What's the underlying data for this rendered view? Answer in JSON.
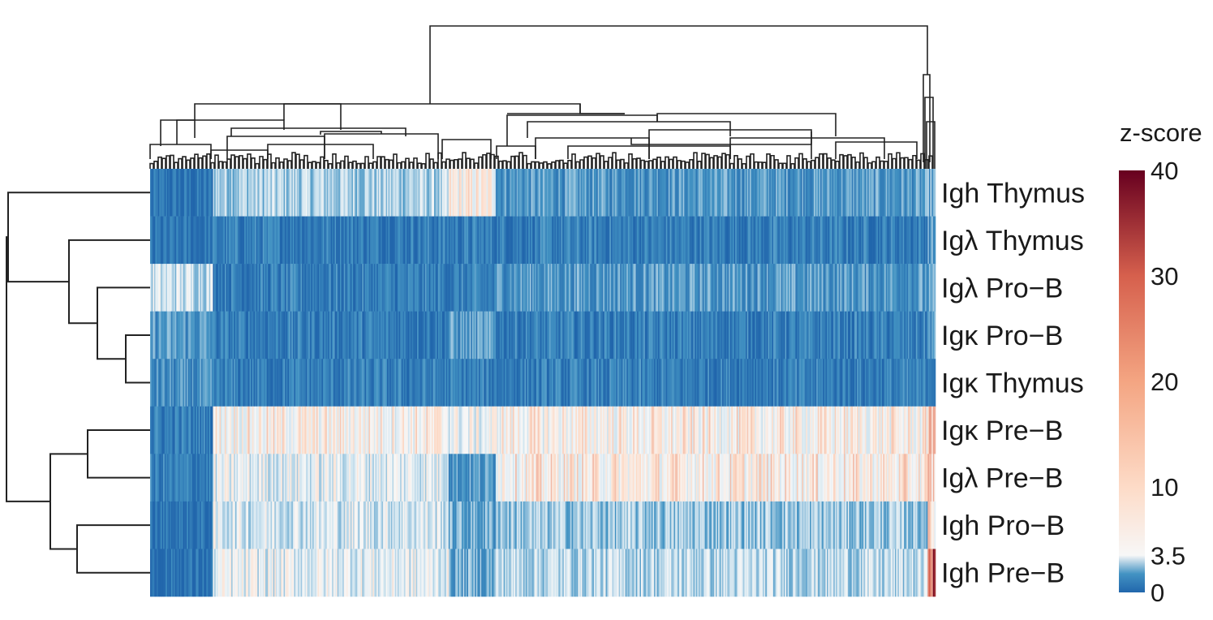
{
  "chart_data": {
    "type": "heatmap",
    "title": "",
    "rows": [
      "Igh Thymus",
      "Igλ Thymus",
      "Igλ Pro−B",
      "Igκ Pro−B",
      "Igκ Thymus",
      "Igκ Pre−B",
      "Igλ Pre−B",
      "Igh Pro−B",
      "Igh Pre−B"
    ],
    "n_columns": 600,
    "column_clusters": [
      {
        "fraction": 0.08,
        "levels": [
          -0.9,
          -0.9,
          -0.2,
          -0.6,
          -0.7,
          -0.8,
          -0.8,
          -0.9,
          -0.9
        ]
      },
      {
        "fraction": 0.3,
        "levels": [
          -0.3,
          -0.8,
          -0.8,
          -0.8,
          -0.8,
          0.05,
          -0.1,
          -0.15,
          -0.1
        ]
      },
      {
        "fraction": 0.06,
        "levels": [
          0.05,
          -0.8,
          -0.8,
          -0.6,
          -0.8,
          -0.05,
          -0.6,
          -0.5,
          -0.5
        ]
      },
      {
        "fraction": 0.55,
        "levels": [
          -0.6,
          -0.8,
          -0.6,
          -0.8,
          -0.8,
          0.05,
          0.08,
          -0.35,
          -0.25
        ]
      },
      {
        "fraction": 0.01,
        "levels": [
          -0.5,
          -0.6,
          -0.6,
          -0.6,
          -0.7,
          0.4,
          0.2,
          0.1,
          0.7
        ]
      }
    ],
    "row_dendrogram": [
      [
        0,
        1,
        0.0,
        0.0,
        1.0,
        0.45
      ],
      [
        2,
        3,
        0.0,
        0.0,
        1.0,
        0.2
      ],
      [
        4,
        5,
        0.0,
        0.0,
        1.0,
        0.26
      ],
      [
        6,
        7,
        0.0,
        0.0,
        1.0,
        0.3
      ],
      [
        8,
        9,
        0.0,
        0.0,
        1.0,
        0.45
      ],
      [
        10,
        11,
        0.0,
        0.0,
        1.0,
        0.4
      ],
      [
        12,
        13,
        0.0,
        0.0,
        1.0,
        0.5
      ],
      [
        14,
        15,
        0.0,
        0.0,
        1.0,
        0.6
      ]
    ],
    "legend": {
      "title": "z-score",
      "ticks": [
        {
          "value": 0,
          "label": "0"
        },
        {
          "value": 3.5,
          "label": "3.5"
        },
        {
          "value": 10,
          "label": "10"
        },
        {
          "value": 20,
          "label": "20"
        },
        {
          "value": 30,
          "label": "30"
        },
        {
          "value": 40,
          "label": "40"
        }
      ],
      "range": [
        0,
        40
      ]
    },
    "colors": {
      "low": "#2166ac",
      "mid_low": "#4393c3",
      "light_blue": "#d1e5f0",
      "white": "#f7f7f7",
      "light_red": "#fddbc7",
      "red": "#d6604d",
      "high": "#67001f",
      "line": "#222222"
    }
  }
}
